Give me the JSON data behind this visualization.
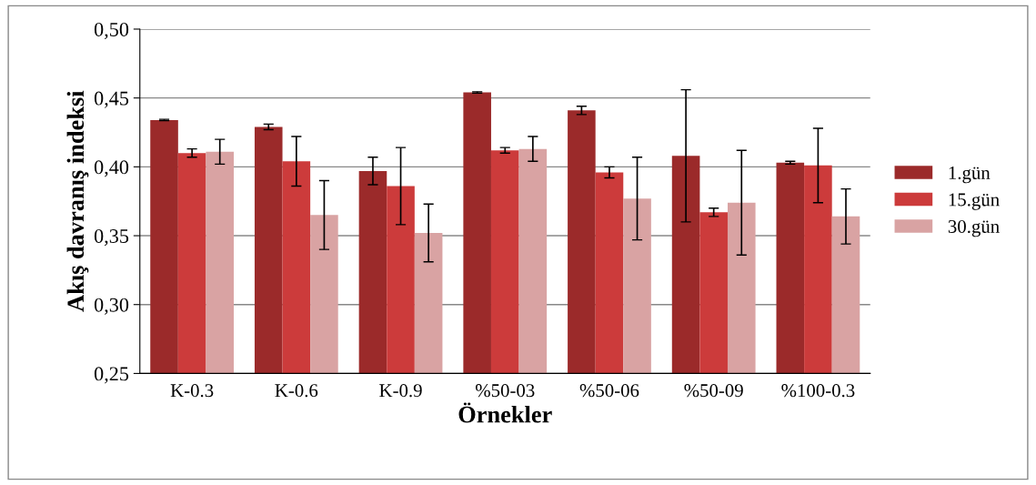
{
  "chart_data": {
    "type": "bar",
    "xlabel": "Örnekler",
    "ylabel": "Akış davranış indeksi",
    "categories": [
      "K-0.3",
      "K-0.6",
      "K-0.9",
      "%50-03",
      "%50-06",
      "%50-09",
      "%100-0.3"
    ],
    "series": [
      {
        "name": "1.gün",
        "color": "#9b2a2a",
        "values": [
          0.434,
          0.429,
          0.397,
          0.454,
          0.441,
          0.408,
          0.403
        ],
        "errors": [
          0.0005,
          0.002,
          0.01,
          0.0005,
          0.003,
          0.048,
          0.001
        ]
      },
      {
        "name": "15.gün",
        "color": "#cc3b3b",
        "values": [
          0.41,
          0.404,
          0.386,
          0.412,
          0.396,
          0.367,
          0.401
        ],
        "errors": [
          0.003,
          0.018,
          0.028,
          0.002,
          0.004,
          0.003,
          0.027
        ]
      },
      {
        "name": "30.gün",
        "color": "#d9a3a3",
        "values": [
          0.411,
          0.365,
          0.352,
          0.413,
          0.377,
          0.374,
          0.364
        ],
        "errors": [
          0.009,
          0.025,
          0.021,
          0.009,
          0.03,
          0.038,
          0.02
        ]
      }
    ],
    "ylim": [
      0.25,
      0.5
    ],
    "yticks": [
      {
        "value": 0.25,
        "label": "0,25"
      },
      {
        "value": 0.3,
        "label": "0,30"
      },
      {
        "value": 0.35,
        "label": "0,35"
      },
      {
        "value": 0.4,
        "label": "0,40"
      },
      {
        "value": 0.45,
        "label": "0,45"
      },
      {
        "value": 0.5,
        "label": "0,50"
      }
    ],
    "grid": "y",
    "legend": "right"
  }
}
